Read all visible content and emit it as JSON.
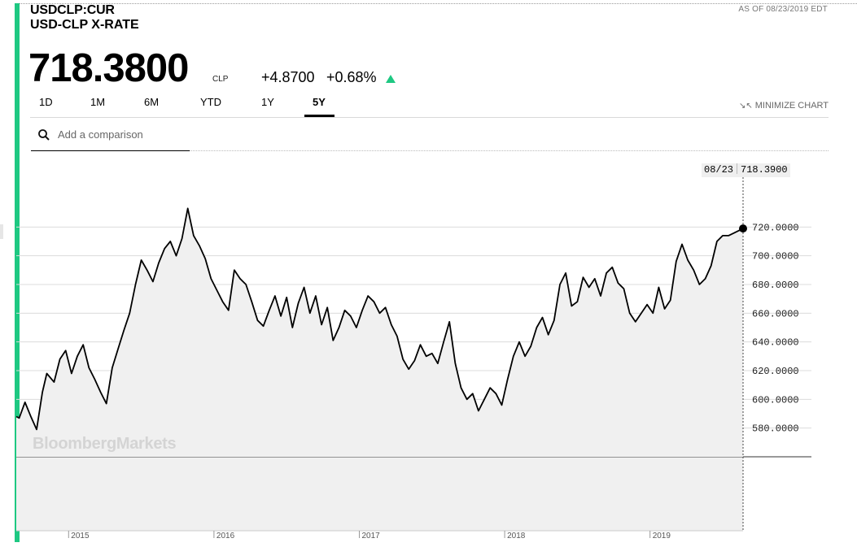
{
  "header": {
    "symbol": "USDCLP:CUR",
    "name": "USD-CLP X-RATE",
    "as_of": "AS OF 08/23/2019 EDT"
  },
  "quote": {
    "price": "718.3800",
    "currency": "CLP",
    "change": "+4.8700",
    "change_pct": "+0.68%",
    "direction_icon": "up-triangle-icon",
    "up_color": "#1ec882"
  },
  "tabs": [
    {
      "label": "1D",
      "active": false
    },
    {
      "label": "1M",
      "active": false
    },
    {
      "label": "6M",
      "active": false
    },
    {
      "label": "YTD",
      "active": false
    },
    {
      "label": "1Y",
      "active": false
    },
    {
      "label": "5Y",
      "active": true
    }
  ],
  "minimize_label": "MINIMIZE CHART",
  "search": {
    "placeholder": "Add a comparison",
    "icon": "search-icon"
  },
  "chart": {
    "watermark": "BloombergMarkets",
    "hover_date": "08/23",
    "hover_value": "718.3900",
    "line_color": "#000000",
    "area_color": "#f0f0f0"
  },
  "chart_data": {
    "type": "area",
    "title": "",
    "xlabel": "",
    "ylabel": "",
    "x_tick_labels": [
      "2015",
      "2016",
      "2017",
      "2018",
      "2019"
    ],
    "y_tick_labels": [
      "580.0000",
      "600.0000",
      "620.0000",
      "640.0000",
      "660.0000",
      "680.0000",
      "700.0000",
      "720.0000"
    ],
    "ylim": [
      560,
      740
    ],
    "xlim": [
      2014.64,
      2019.64
    ],
    "grid": true,
    "series": [
      {
        "x": [
          2014.64,
          2014.66,
          2014.7,
          2014.74,
          2014.78,
          2014.82,
          2014.85,
          2014.9,
          2014.94,
          2014.98,
          2015.02,
          2015.06,
          2015.1,
          2015.14,
          2015.18,
          2015.22,
          2015.26,
          2015.3,
          2015.34,
          2015.38,
          2015.42,
          2015.46,
          2015.5,
          2015.54,
          2015.58,
          2015.62,
          2015.66,
          2015.7,
          2015.74,
          2015.78,
          2015.82,
          2015.86,
          2015.9,
          2015.94,
          2015.98,
          2016.02,
          2016.06,
          2016.1,
          2016.14,
          2016.18,
          2016.22,
          2016.26,
          2016.3,
          2016.34,
          2016.38,
          2016.42,
          2016.46,
          2016.5,
          2016.54,
          2016.58,
          2016.62,
          2016.66,
          2016.7,
          2016.74,
          2016.78,
          2016.82,
          2016.86,
          2016.9,
          2016.94,
          2016.98,
          2017.02,
          2017.06,
          2017.1,
          2017.14,
          2017.18,
          2017.22,
          2017.26,
          2017.3,
          2017.34,
          2017.38,
          2017.42,
          2017.46,
          2017.5,
          2017.54,
          2017.58,
          2017.62,
          2017.66,
          2017.7,
          2017.74,
          2017.78,
          2017.82,
          2017.86,
          2017.9,
          2017.94,
          2017.98,
          2018.02,
          2018.06,
          2018.1,
          2018.14,
          2018.18,
          2018.22,
          2018.26,
          2018.3,
          2018.34,
          2018.38,
          2018.42,
          2018.46,
          2018.5,
          2018.54,
          2018.58,
          2018.62,
          2018.66,
          2018.7,
          2018.74,
          2018.78,
          2018.82,
          2018.86,
          2018.9,
          2018.94,
          2018.98,
          2019.02,
          2019.06,
          2019.1,
          2019.14,
          2019.18,
          2019.22,
          2019.26,
          2019.3,
          2019.34,
          2019.38,
          2019.42,
          2019.46,
          2019.5,
          2019.54,
          2019.58,
          2019.62,
          2019.64
        ],
        "values": [
          588,
          587,
          598,
          588,
          579,
          605,
          618,
          612,
          628,
          634,
          618,
          630,
          638,
          622,
          614,
          605,
          597,
          622,
          635,
          648,
          660,
          680,
          697,
          690,
          682,
          695,
          705,
          710,
          700,
          712,
          733,
          714,
          707,
          698,
          684,
          676,
          668,
          662,
          690,
          684,
          680,
          668,
          655,
          651,
          662,
          672,
          658,
          671,
          650,
          667,
          678,
          660,
          672,
          652,
          664,
          641,
          650,
          662,
          658,
          650,
          662,
          672,
          668,
          660,
          664,
          652,
          644,
          628,
          621,
          627,
          638,
          630,
          632,
          625,
          640,
          654,
          625,
          608,
          600,
          604,
          592,
          600,
          608,
          604,
          596,
          614,
          630,
          640,
          630,
          637,
          650,
          657,
          645,
          655,
          680,
          688,
          665,
          668,
          685,
          678,
          684,
          672,
          688,
          692,
          681,
          677,
          660,
          654,
          660,
          666,
          660,
          678,
          663,
          669,
          696,
          708,
          697,
          690,
          680,
          684,
          693,
          710,
          714,
          714,
          716,
          718,
          719
        ]
      }
    ]
  }
}
